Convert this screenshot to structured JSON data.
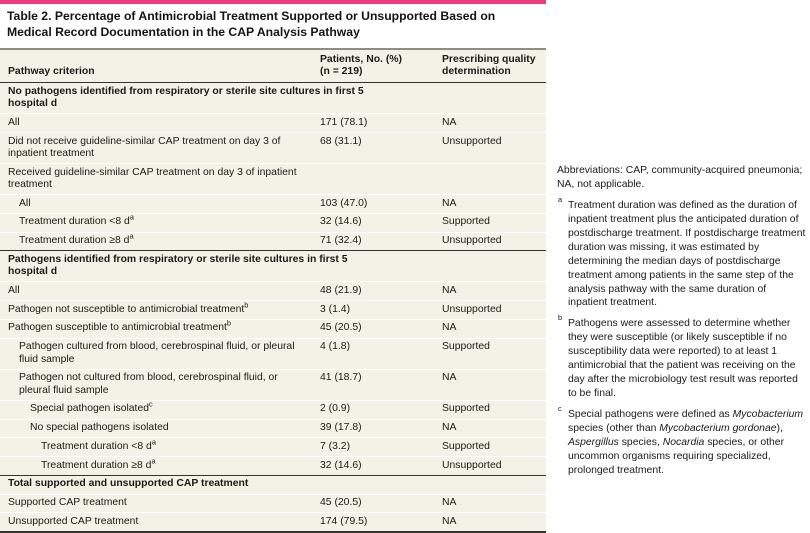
{
  "title": "Table 2. Percentage of Antimicrobial Treatment Supported or Unsupported Based on Medical Record Documentation in the CAP Analysis Pathway",
  "header": {
    "col1": "Pathway criterion",
    "col2_line1": "Patients, No. (%)",
    "col2_line2": "(n = 219)",
    "col3_line1": "Prescribing quality",
    "col3_line2": "determination"
  },
  "table": {
    "rows": [
      {
        "type": "section",
        "label": "No pathogens identified from respiratory or sterile site cultures in first 5 hospital d"
      },
      {
        "type": "item",
        "indent": 0,
        "label": "All",
        "value": "171 (78.1)",
        "determination": "NA"
      },
      {
        "type": "item",
        "indent": 0,
        "label": "Did not receive guideline-similar CAP treatment on day 3 of inpatient treatment",
        "value": "68 (31.1)",
        "determination": "Unsupported"
      },
      {
        "type": "item",
        "indent": 0,
        "label": "Received guideline-similar CAP treatment on day 3 of inpatient treatment",
        "value": "",
        "determination": ""
      },
      {
        "type": "item",
        "indent": 1,
        "label": "All",
        "value": "103 (47.0)",
        "determination": "NA"
      },
      {
        "type": "item",
        "indent": 1,
        "label": "Treatment duration <8 d",
        "sup": "a",
        "value": "32 (14.6)",
        "determination": "Supported"
      },
      {
        "type": "item",
        "indent": 1,
        "label": "Treatment duration ≥8 d",
        "sup": "a",
        "value": "71 (32.4)",
        "determination": "Unsupported"
      },
      {
        "type": "section",
        "label": "Pathogens identified from respiratory or sterile site cultures in first 5 hospital d"
      },
      {
        "type": "item",
        "indent": 0,
        "label": "All",
        "value": "48 (21.9)",
        "determination": "NA"
      },
      {
        "type": "item",
        "indent": 0,
        "label": "Pathogen not susceptible to antimicrobial treatment",
        "sup": "b",
        "value": "3 (1.4)",
        "determination": "Unsupported"
      },
      {
        "type": "item",
        "indent": 0,
        "label": "Pathogen susceptible to antimicrobial treatment",
        "sup": "b",
        "value": "45 (20.5)",
        "determination": "NA"
      },
      {
        "type": "item",
        "indent": 1,
        "label": "Pathogen cultured from blood, cerebrospinal fluid, or pleural fluid sample",
        "value": "4 (1.8)",
        "determination": "Supported"
      },
      {
        "type": "item",
        "indent": 1,
        "label": "Pathogen not cultured from blood, cerebrospinal fluid, or pleural fluid sample",
        "value": "41 (18.7)",
        "determination": "NA"
      },
      {
        "type": "item",
        "indent": 2,
        "label": "Special pathogen isolated",
        "sup": "c",
        "value": "2 (0.9)",
        "determination": "Supported"
      },
      {
        "type": "item",
        "indent": 2,
        "label": "No special pathogens isolated",
        "value": "39 (17.8)",
        "determination": "NA"
      },
      {
        "type": "item",
        "indent": 3,
        "label": "Treatment duration <8 d",
        "sup": "a",
        "value": "7 (3.2)",
        "determination": "Supported"
      },
      {
        "type": "item",
        "indent": 3,
        "label": "Treatment duration ≥8 d",
        "sup": "a",
        "value": "32 (14.6)",
        "determination": "Unsupported"
      },
      {
        "type": "section",
        "label": "Total supported and unsupported CAP treatment"
      },
      {
        "type": "item",
        "indent": 0,
        "label": "Supported CAP treatment",
        "value": "45 (20.5)",
        "determination": "NA"
      },
      {
        "type": "item",
        "indent": 0,
        "label": "Unsupported CAP treatment",
        "value": "174 (79.5)",
        "determination": "NA"
      }
    ]
  },
  "footnotes": {
    "abbreviations": "Abbreviations: CAP, community-acquired pneumonia; NA, not applicable.",
    "notes": [
      {
        "marker": "a",
        "segments": [
          {
            "text": "Treatment duration was defined as the duration of inpatient treatment plus the anticipated duration of postdischarge treatment. If postdischarge treatment duration was missing, it was estimated by determining the median days of postdischarge treatment among patients in the same step of the analysis pathway with the same duration of inpatient treatment."
          }
        ]
      },
      {
        "marker": "b",
        "segments": [
          {
            "text": "Pathogens were assessed to determine whether they were susceptible (or likely susceptible if no susceptibility data were reported) to at least 1 antimicrobial that the patient was receiving on the day after the microbiology test result was reported to be final."
          }
        ]
      },
      {
        "marker": "c",
        "segments": [
          {
            "text": "Special pathogens were defined as "
          },
          {
            "text": "Mycobacterium",
            "italic": true
          },
          {
            "text": " species (other than "
          },
          {
            "text": "Mycobacterium gordonae",
            "italic": true
          },
          {
            "text": "), "
          },
          {
            "text": "Aspergillus",
            "italic": true
          },
          {
            "text": " species, "
          },
          {
            "text": "Nocardia",
            "italic": true
          },
          {
            "text": " species, or other uncommon organisms requiring specialized, prolonged treatment."
          }
        ]
      }
    ]
  },
  "colors": {
    "accent_bar": "#ee3d7d",
    "table_background": "#f4f2e6",
    "row_separator": "#ffffff",
    "section_rule": "#35342f",
    "header_top_rule": "#8f8e85",
    "text": "#1b1a17"
  }
}
